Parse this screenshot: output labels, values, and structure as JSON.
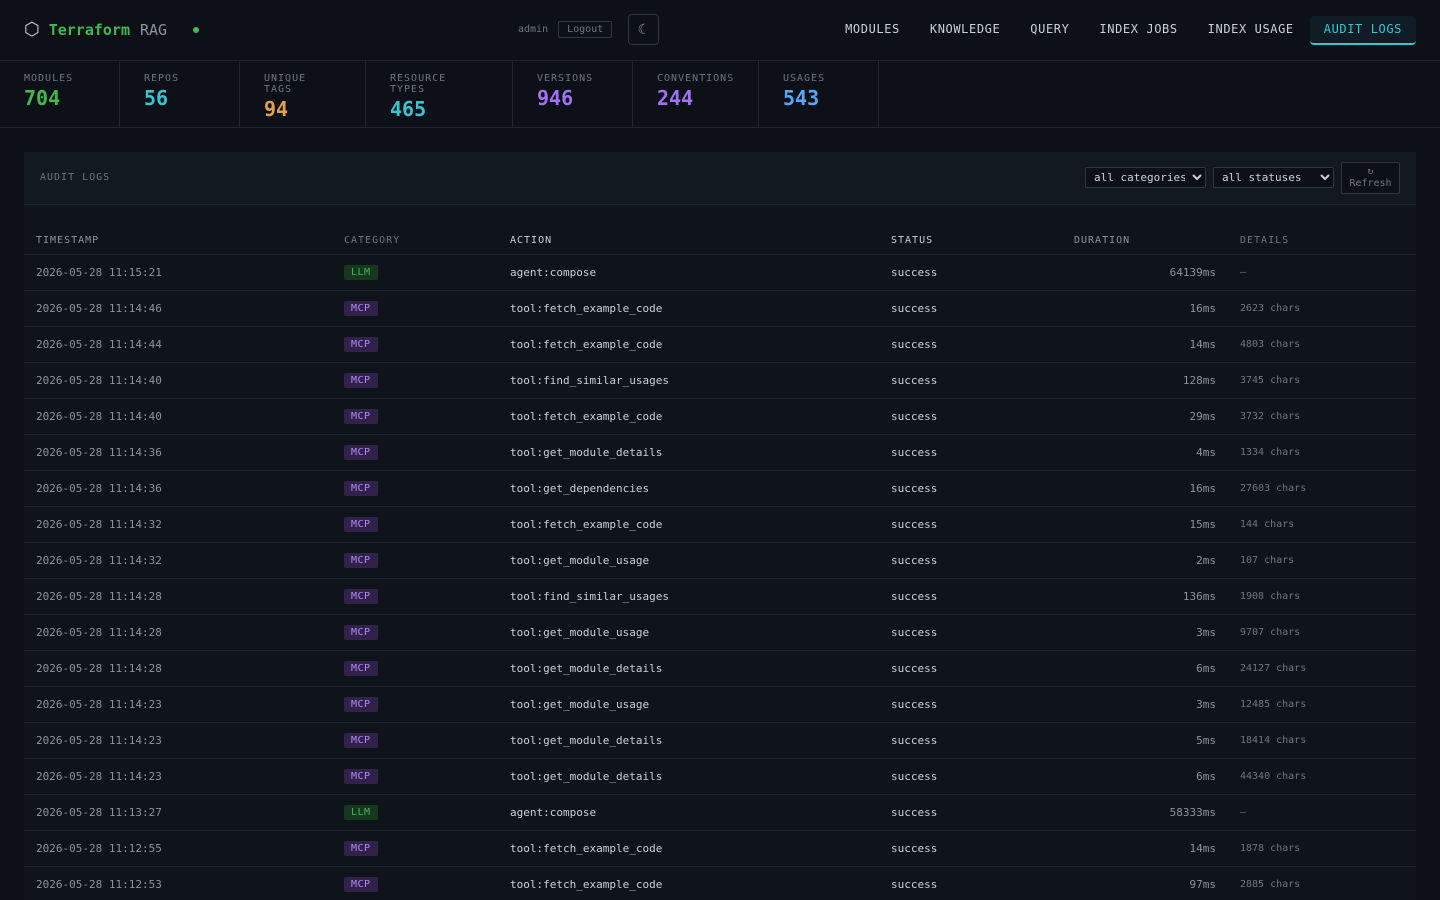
{
  "brand": {
    "name": "Terraform",
    "suffix": "RAG",
    "icon": "hexagon-icon",
    "status_color": "#3fb950"
  },
  "user": {
    "name": "admin",
    "logout_label": "Logout",
    "theme_icon": "moon-icon"
  },
  "nav": {
    "items": [
      "MODULES",
      "KNOWLEDGE",
      "QUERY",
      "INDEX JOBS",
      "INDEX USAGE",
      "AUDIT LOGS"
    ],
    "active": "AUDIT LOGS"
  },
  "stats": [
    {
      "label": "MODULES",
      "value": "704",
      "color": "#3fb950"
    },
    {
      "label": "REPOS",
      "value": "56",
      "color": "#39c5cf"
    },
    {
      "label": "UNIQUE TAGS",
      "value": "94",
      "color": "#e3a14f"
    },
    {
      "label": "RESOURCE TYPES",
      "value": "465",
      "color": "#39c5cf"
    },
    {
      "label": "VERSIONS",
      "value": "946",
      "color": "#a371f7"
    },
    {
      "label": "CONVENTIONS",
      "value": "244",
      "color": "#a371f7"
    },
    {
      "label": "USAGES",
      "value": "543",
      "color": "#58a6ff"
    }
  ],
  "panel": {
    "title": "AUDIT LOGS",
    "category_filter": "all categories",
    "status_filter": "all statuses",
    "refresh_icon": "↻",
    "refresh_label": "Refresh"
  },
  "table": {
    "columns": [
      "TIMESTAMP",
      "CATEGORY",
      "ACTION",
      "STATUS",
      "DURATION",
      "DETAILS"
    ],
    "rows": [
      {
        "timestamp": "2026-05-28 11:15:21",
        "category": "LLM",
        "action": "agent:compose",
        "status": "success",
        "duration": "64139ms",
        "details": "–"
      },
      {
        "timestamp": "2026-05-28 11:14:46",
        "category": "MCP",
        "action": "tool:fetch_example_code",
        "status": "success",
        "duration": "16ms",
        "details": "2623 chars"
      },
      {
        "timestamp": "2026-05-28 11:14:44",
        "category": "MCP",
        "action": "tool:fetch_example_code",
        "status": "success",
        "duration": "14ms",
        "details": "4803 chars"
      },
      {
        "timestamp": "2026-05-28 11:14:40",
        "category": "MCP",
        "action": "tool:find_similar_usages",
        "status": "success",
        "duration": "128ms",
        "details": "3745 chars"
      },
      {
        "timestamp": "2026-05-28 11:14:40",
        "category": "MCP",
        "action": "tool:fetch_example_code",
        "status": "success",
        "duration": "29ms",
        "details": "3732 chars"
      },
      {
        "timestamp": "2026-05-28 11:14:36",
        "category": "MCP",
        "action": "tool:get_module_details",
        "status": "success",
        "duration": "4ms",
        "details": "1334 chars"
      },
      {
        "timestamp": "2026-05-28 11:14:36",
        "category": "MCP",
        "action": "tool:get_dependencies",
        "status": "success",
        "duration": "16ms",
        "details": "27603 chars"
      },
      {
        "timestamp": "2026-05-28 11:14:32",
        "category": "MCP",
        "action": "tool:fetch_example_code",
        "status": "success",
        "duration": "15ms",
        "details": "144 chars"
      },
      {
        "timestamp": "2026-05-28 11:14:32",
        "category": "MCP",
        "action": "tool:get_module_usage",
        "status": "success",
        "duration": "2ms",
        "details": "107 chars"
      },
      {
        "timestamp": "2026-05-28 11:14:28",
        "category": "MCP",
        "action": "tool:find_similar_usages",
        "status": "success",
        "duration": "136ms",
        "details": "1908 chars"
      },
      {
        "timestamp": "2026-05-28 11:14:28",
        "category": "MCP",
        "action": "tool:get_module_usage",
        "status": "success",
        "duration": "3ms",
        "details": "9707 chars"
      },
      {
        "timestamp": "2026-05-28 11:14:28",
        "category": "MCP",
        "action": "tool:get_module_details",
        "status": "success",
        "duration": "6ms",
        "details": "24127 chars"
      },
      {
        "timestamp": "2026-05-28 11:14:23",
        "category": "MCP",
        "action": "tool:get_module_usage",
        "status": "success",
        "duration": "3ms",
        "details": "12485 chars"
      },
      {
        "timestamp": "2026-05-28 11:14:23",
        "category": "MCP",
        "action": "tool:get_module_details",
        "status": "success",
        "duration": "5ms",
        "details": "18414 chars"
      },
      {
        "timestamp": "2026-05-28 11:14:23",
        "category": "MCP",
        "action": "tool:get_module_details",
        "status": "success",
        "duration": "6ms",
        "details": "44340 chars"
      },
      {
        "timestamp": "2026-05-28 11:13:27",
        "category": "LLM",
        "action": "agent:compose",
        "status": "success",
        "duration": "58333ms",
        "details": "–"
      },
      {
        "timestamp": "2026-05-28 11:12:55",
        "category": "MCP",
        "action": "tool:fetch_example_code",
        "status": "success",
        "duration": "14ms",
        "details": "1878 chars"
      },
      {
        "timestamp": "2026-05-28 11:12:53",
        "category": "MCP",
        "action": "tool:fetch_example_code",
        "status": "success",
        "duration": "97ms",
        "details": "2885 chars"
      }
    ]
  }
}
